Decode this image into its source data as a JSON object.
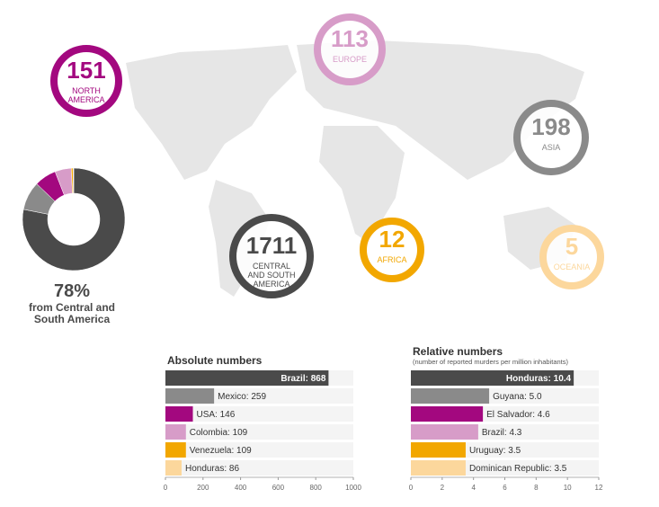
{
  "chart_data": [
    {
      "type": "pie",
      "categories": [
        "CENTRAL AND SOUTH AMERICA",
        "ASIA",
        "NORTH AMERICA",
        "EUROPE",
        "AFRICA",
        "OCEANIA"
      ],
      "values": [
        1711,
        198,
        151,
        113,
        12,
        5
      ],
      "colors": [
        "#4a4a4a",
        "#8a8a8a",
        "#a3087f",
        "#d79cc8",
        "#f2a700",
        "#fcd79c"
      ],
      "annotations": [
        "78%",
        "from Central and South America"
      ]
    },
    {
      "type": "bar",
      "orientation": "horizontal",
      "title": "Absolute numbers",
      "values": [
        868,
        259,
        146,
        109,
        109,
        86
      ],
      "value_labels": [
        "Brazil: 868",
        "Mexico: 259",
        "USA: 146",
        "Colombia: 109",
        "Venezuela: 109",
        "Honduras: 86"
      ],
      "colors": [
        "#4a4a4a",
        "#8a8a8a",
        "#a3087f",
        "#d79cc8",
        "#f2a700",
        "#fcd79c"
      ],
      "xlim": [
        0,
        1000
      ],
      "xticks": [
        0,
        200,
        400,
        600,
        800,
        1000
      ]
    },
    {
      "type": "bar",
      "orientation": "horizontal",
      "title": "Relative numbers",
      "subtitle": "(number of reported murders per million inhabitants)",
      "values": [
        10.4,
        5.0,
        4.6,
        4.3,
        3.5,
        3.5
      ],
      "value_labels": [
        "Honduras: 10.4",
        "Guyana: 5.0",
        "El Salvador: 4.6",
        "Brazil: 4.3",
        "Uruguay: 3.5",
        "Dominican Republic: 3.5"
      ],
      "colors": [
        "#4a4a4a",
        "#8a8a8a",
        "#a3087f",
        "#d79cc8",
        "#f2a700",
        "#fcd79c"
      ],
      "xlim": [
        0,
        12
      ],
      "xticks": [
        0,
        2,
        4,
        6,
        8,
        10,
        12
      ]
    }
  ]
}
